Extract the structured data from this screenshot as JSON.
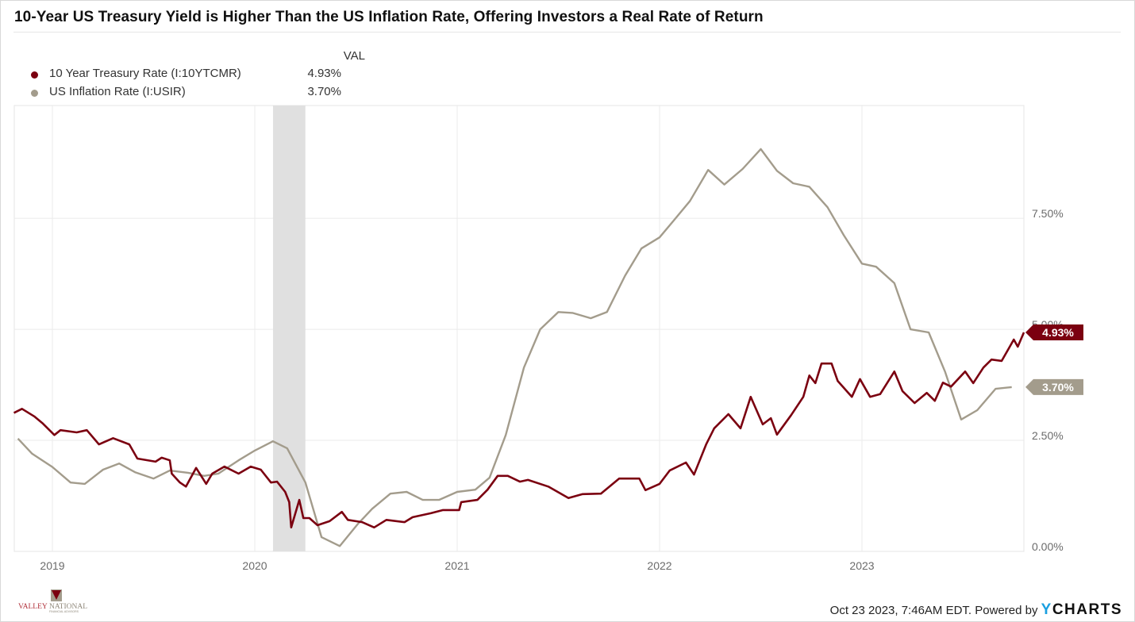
{
  "title": "10-Year US Treasury Yield is Higher Than the US Inflation Rate, Offering Investors a Real Rate of Return",
  "legend": {
    "header": "VAL",
    "items": [
      {
        "name": "10 Year Treasury Rate (I:10YTCMR)",
        "value": "4.93%",
        "color": "#7b0010"
      },
      {
        "name": "US Inflation Rate (I:USIR)",
        "value": "3.70%",
        "color": "#a39c8c"
      }
    ]
  },
  "footer": {
    "timestamp": "Oct 23 2023, 7:46AM EDT. Powered by",
    "brand_y": "Y",
    "brand_rest": "CHARTS"
  },
  "logo": {
    "line1a": "VALLEY",
    "line1b": "NATIONAL",
    "line2": "FINANCIAL ADVISORS"
  },
  "chart_data": {
    "type": "line",
    "title": "10-Year US Treasury Yield is Higher Than the US Inflation Rate, Offering Investors a Real Rate of Return",
    "xlabel": "",
    "ylabel": "",
    "x_unit": "decimal year",
    "xlim": [
      2018.81,
      2023.8
    ],
    "ylim": [
      0,
      10.04
    ],
    "grid": true,
    "y_axis_side": "right",
    "legend_position": "top-left",
    "x_ticks": [
      2019,
      2020,
      2021,
      2022,
      2023
    ],
    "x_tick_labels": [
      "2019",
      "2020",
      "2021",
      "2022",
      "2023"
    ],
    "y_ticks": [
      0,
      2.5,
      5,
      7.5
    ],
    "y_tick_labels": [
      "0.00%",
      "2.50%",
      "5.00%",
      "7.50%"
    ],
    "recession_shading": [
      [
        2020.09,
        2020.25
      ]
    ],
    "end_labels": [
      "4.93%",
      "3.70%"
    ],
    "series": [
      {
        "name": "10 Year Treasury Rate (I:10YTCMR)",
        "color": "#7b0010",
        "last_value": 4.93,
        "points": [
          [
            2018.81,
            3.12
          ],
          [
            2018.85,
            3.21
          ],
          [
            2018.91,
            3.04
          ],
          [
            2018.95,
            2.89
          ],
          [
            2019.01,
            2.62
          ],
          [
            2019.04,
            2.73
          ],
          [
            2019.12,
            2.68
          ],
          [
            2019.17,
            2.73
          ],
          [
            2019.23,
            2.41
          ],
          [
            2019.3,
            2.55
          ],
          [
            2019.38,
            2.41
          ],
          [
            2019.42,
            2.09
          ],
          [
            2019.51,
            2.02
          ],
          [
            2019.54,
            2.11
          ],
          [
            2019.58,
            2.05
          ],
          [
            2019.59,
            1.75
          ],
          [
            2019.63,
            1.55
          ],
          [
            2019.66,
            1.46
          ],
          [
            2019.71,
            1.88
          ],
          [
            2019.76,
            1.52
          ],
          [
            2019.79,
            1.75
          ],
          [
            2019.85,
            1.91
          ],
          [
            2019.92,
            1.75
          ],
          [
            2019.98,
            1.91
          ],
          [
            2020.03,
            1.84
          ],
          [
            2020.08,
            1.55
          ],
          [
            2020.11,
            1.57
          ],
          [
            2020.15,
            1.34
          ],
          [
            2020.17,
            1.11
          ],
          [
            2020.18,
            0.54
          ],
          [
            2020.22,
            1.16
          ],
          [
            2020.24,
            0.75
          ],
          [
            2020.27,
            0.75
          ],
          [
            2020.31,
            0.59
          ],
          [
            2020.37,
            0.68
          ],
          [
            2020.43,
            0.89
          ],
          [
            2020.46,
            0.71
          ],
          [
            2020.53,
            0.66
          ],
          [
            2020.59,
            0.54
          ],
          [
            2020.65,
            0.71
          ],
          [
            2020.74,
            0.66
          ],
          [
            2020.78,
            0.77
          ],
          [
            2020.87,
            0.86
          ],
          [
            2020.93,
            0.93
          ],
          [
            2021.01,
            0.93
          ],
          [
            2021.02,
            1.11
          ],
          [
            2021.1,
            1.16
          ],
          [
            2021.15,
            1.39
          ],
          [
            2021.2,
            1.7
          ],
          [
            2021.25,
            1.7
          ],
          [
            2021.31,
            1.57
          ],
          [
            2021.35,
            1.61
          ],
          [
            2021.45,
            1.46
          ],
          [
            2021.55,
            1.2
          ],
          [
            2021.62,
            1.29
          ],
          [
            2021.71,
            1.3
          ],
          [
            2021.8,
            1.64
          ],
          [
            2021.9,
            1.64
          ],
          [
            2021.93,
            1.38
          ],
          [
            2022.0,
            1.52
          ],
          [
            2022.05,
            1.82
          ],
          [
            2022.13,
            2.0
          ],
          [
            2022.17,
            1.73
          ],
          [
            2022.23,
            2.41
          ],
          [
            2022.27,
            2.77
          ],
          [
            2022.34,
            3.09
          ],
          [
            2022.4,
            2.77
          ],
          [
            2022.45,
            3.48
          ],
          [
            2022.51,
            2.86
          ],
          [
            2022.55,
            3.0
          ],
          [
            2022.58,
            2.63
          ],
          [
            2022.65,
            3.07
          ],
          [
            2022.71,
            3.48
          ],
          [
            2022.74,
            3.96
          ],
          [
            2022.77,
            3.79
          ],
          [
            2022.8,
            4.23
          ],
          [
            2022.85,
            4.23
          ],
          [
            2022.88,
            3.84
          ],
          [
            2022.95,
            3.48
          ],
          [
            2022.99,
            3.88
          ],
          [
            2023.04,
            3.48
          ],
          [
            2023.09,
            3.54
          ],
          [
            2023.16,
            4.05
          ],
          [
            2023.2,
            3.61
          ],
          [
            2023.26,
            3.34
          ],
          [
            2023.32,
            3.57
          ],
          [
            2023.36,
            3.39
          ],
          [
            2023.4,
            3.8
          ],
          [
            2023.44,
            3.71
          ],
          [
            2023.51,
            4.05
          ],
          [
            2023.55,
            3.79
          ],
          [
            2023.6,
            4.14
          ],
          [
            2023.64,
            4.32
          ],
          [
            2023.69,
            4.29
          ],
          [
            2023.75,
            4.77
          ],
          [
            2023.77,
            4.61
          ],
          [
            2023.8,
            4.93
          ]
        ]
      },
      {
        "name": "US Inflation Rate (I:USIR)",
        "color": "#a39c8c",
        "last_value": 3.7,
        "points": [
          [
            2018.83,
            2.54
          ],
          [
            2018.9,
            2.2
          ],
          [
            2019.0,
            1.9
          ],
          [
            2019.09,
            1.55
          ],
          [
            2019.16,
            1.52
          ],
          [
            2019.25,
            1.84
          ],
          [
            2019.33,
            1.98
          ],
          [
            2019.41,
            1.78
          ],
          [
            2019.5,
            1.64
          ],
          [
            2019.58,
            1.82
          ],
          [
            2019.67,
            1.77
          ],
          [
            2019.75,
            1.7
          ],
          [
            2019.82,
            1.75
          ],
          [
            2019.92,
            2.05
          ],
          [
            2020.0,
            2.27
          ],
          [
            2020.09,
            2.48
          ],
          [
            2020.16,
            2.32
          ],
          [
            2020.25,
            1.55
          ],
          [
            2020.33,
            0.32
          ],
          [
            2020.42,
            0.12
          ],
          [
            2020.51,
            0.62
          ],
          [
            2020.58,
            0.96
          ],
          [
            2020.67,
            1.3
          ],
          [
            2020.75,
            1.34
          ],
          [
            2020.83,
            1.16
          ],
          [
            2020.91,
            1.16
          ],
          [
            2021.0,
            1.34
          ],
          [
            2021.09,
            1.39
          ],
          [
            2021.16,
            1.66
          ],
          [
            2021.24,
            2.62
          ],
          [
            2021.33,
            4.14
          ],
          [
            2021.41,
            5.0
          ],
          [
            2021.5,
            5.39
          ],
          [
            2021.57,
            5.37
          ],
          [
            2021.66,
            5.25
          ],
          [
            2021.74,
            5.39
          ],
          [
            2021.83,
            6.21
          ],
          [
            2021.91,
            6.82
          ],
          [
            2022.0,
            7.07
          ],
          [
            2022.07,
            7.45
          ],
          [
            2022.15,
            7.89
          ],
          [
            2022.24,
            8.59
          ],
          [
            2022.32,
            8.26
          ],
          [
            2022.41,
            8.61
          ],
          [
            2022.5,
            9.06
          ],
          [
            2022.58,
            8.57
          ],
          [
            2022.66,
            8.29
          ],
          [
            2022.74,
            8.21
          ],
          [
            2022.83,
            7.75
          ],
          [
            2022.91,
            7.12
          ],
          [
            2023.0,
            6.48
          ],
          [
            2023.07,
            6.41
          ],
          [
            2023.16,
            6.04
          ],
          [
            2023.24,
            5.0
          ],
          [
            2023.33,
            4.93
          ],
          [
            2023.41,
            4.05
          ],
          [
            2023.49,
            2.97
          ],
          [
            2023.57,
            3.18
          ],
          [
            2023.66,
            3.66
          ],
          [
            2023.74,
            3.7
          ]
        ]
      }
    ]
  }
}
